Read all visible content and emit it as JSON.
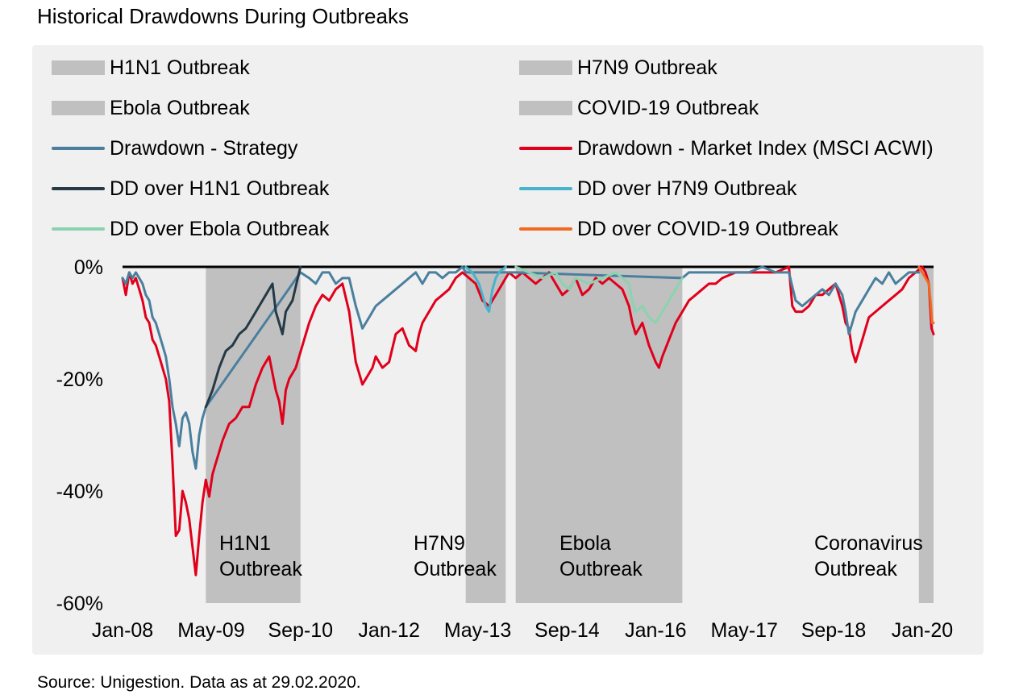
{
  "page": {
    "title": "Historical Drawdowns During Outbreaks",
    "source": "Source: Unigestion. Data as at 29.02.2020."
  },
  "chart_data": {
    "type": "line",
    "title": "Historical Drawdowns During Outbreaks",
    "xlabel": "",
    "ylabel": "",
    "ylim": [
      -60,
      0
    ],
    "yticks": [
      0,
      -20,
      -40,
      -60
    ],
    "ytick_labels": [
      "0%",
      "-20%",
      "-40%",
      "-60%"
    ],
    "xlim": [
      2008.0,
      2020.17
    ],
    "xticks": [
      2008.0,
      2009.33,
      2010.67,
      2012.0,
      2013.33,
      2014.67,
      2016.0,
      2017.33,
      2018.67,
      2020.0
    ],
    "xtick_labels": [
      "Jan-08",
      "May-09",
      "Sep-10",
      "Jan-12",
      "May-13",
      "Sep-14",
      "Jan-16",
      "May-17",
      "Sep-18",
      "Jan-20"
    ],
    "legend": [
      {
        "label": "H1N1 Outbreak",
        "kind": "area",
        "color": "#c0c0c0"
      },
      {
        "label": "H7N9 Outbreak",
        "kind": "area",
        "color": "#c0c0c0"
      },
      {
        "label": "Ebola Outbreak",
        "kind": "area",
        "color": "#c0c0c0"
      },
      {
        "label": "COVID-19 Outbreak",
        "kind": "area",
        "color": "#c0c0c0"
      },
      {
        "label": "Drawdown - Strategy",
        "kind": "line",
        "color": "#4a7f9e"
      },
      {
        "label": "Drawdown - Market Index (MSCI ACWI)",
        "kind": "line",
        "color": "#e0001b"
      },
      {
        "label": "DD over H1N1 Outbreak",
        "kind": "line",
        "color": "#253a46"
      },
      {
        "label": "DD over H7N9 Outbreak",
        "kind": "line",
        "color": "#45b4cc"
      },
      {
        "label": "DD over Ebola Outbreak",
        "kind": "line",
        "color": "#8bd3b0"
      },
      {
        "label": "DD over COVID-19 Outbreak",
        "kind": "line",
        "color": "#f26a21"
      }
    ],
    "shaded_periods": [
      {
        "name": "H1N1 Outbreak",
        "start": 2009.25,
        "end": 2010.67,
        "annotation": [
          "H1N1",
          "Outbreak"
        ]
      },
      {
        "name": "H7N9 Outbreak",
        "start": 2013.15,
        "end": 2013.75,
        "annotation": [
          "H7N9",
          "Outbreak"
        ]
      },
      {
        "name": "Ebola Outbreak",
        "start": 2013.9,
        "end": 2016.4,
        "annotation": [
          "Ebola",
          "Outbreak"
        ]
      },
      {
        "name": "COVID-19 Outbreak",
        "start": 2019.95,
        "end": 2020.17,
        "annotation": [
          "Coronavirus",
          "Outbreak"
        ]
      }
    ],
    "series": [
      {
        "name": "Drawdown - Market Index (MSCI ACWI)",
        "color": "#e0001b",
        "x": [
          2008.0,
          2008.05,
          2008.1,
          2008.15,
          2008.2,
          2008.25,
          2008.3,
          2008.35,
          2008.4,
          2008.45,
          2008.5,
          2008.55,
          2008.6,
          2008.65,
          2008.7,
          2008.75,
          2008.8,
          2008.85,
          2008.9,
          2008.95,
          2009.0,
          2009.05,
          2009.1,
          2009.15,
          2009.2,
          2009.25,
          2009.3,
          2009.35,
          2009.4,
          2009.45,
          2009.5,
          2009.6,
          2009.7,
          2009.8,
          2009.9,
          2010.0,
          2010.1,
          2010.2,
          2010.3,
          2010.35,
          2010.4,
          2010.45,
          2010.5,
          2010.6,
          2010.7,
          2010.8,
          2010.9,
          2011.0,
          2011.1,
          2011.2,
          2011.3,
          2011.4,
          2011.5,
          2011.55,
          2011.6,
          2011.7,
          2011.75,
          2011.8,
          2011.9,
          2012.0,
          2012.1,
          2012.2,
          2012.3,
          2012.4,
          2012.45,
          2012.5,
          2012.6,
          2012.7,
          2012.8,
          2012.9,
          2013.0,
          2013.1,
          2013.2,
          2013.3,
          2013.4,
          2013.5,
          2013.6,
          2013.7,
          2013.8,
          2013.9,
          2014.0,
          2014.1,
          2014.2,
          2014.3,
          2014.4,
          2014.5,
          2014.6,
          2014.7,
          2014.8,
          2014.9,
          2015.0,
          2015.1,
          2015.2,
          2015.3,
          2015.4,
          2015.5,
          2015.6,
          2015.65,
          2015.7,
          2015.8,
          2015.9,
          2016.0,
          2016.05,
          2016.1,
          2016.2,
          2016.3,
          2016.4,
          2016.5,
          2016.6,
          2016.7,
          2016.8,
          2016.9,
          2017.0,
          2017.2,
          2017.4,
          2017.6,
          2017.8,
          2018.0,
          2018.05,
          2018.1,
          2018.2,
          2018.3,
          2018.4,
          2018.5,
          2018.6,
          2018.7,
          2018.8,
          2018.85,
          2018.9,
          2018.95,
          2019.0,
          2019.1,
          2019.2,
          2019.3,
          2019.4,
          2019.5,
          2019.6,
          2019.7,
          2019.8,
          2019.9,
          2020.0,
          2020.05,
          2020.1,
          2020.14,
          2020.17
        ],
        "values": [
          -2,
          -5,
          -1,
          -3,
          -2,
          -4,
          -6,
          -9,
          -10,
          -13,
          -14,
          -16,
          -18,
          -20,
          -24,
          -35,
          -48,
          -47,
          -40,
          -42,
          -45,
          -50,
          -55,
          -48,
          -42,
          -38,
          -41,
          -37,
          -35,
          -33,
          -31,
          -28,
          -27,
          -25,
          -25,
          -21,
          -18,
          -16,
          -22,
          -24,
          -28,
          -22,
          -20,
          -18,
          -14,
          -10,
          -7,
          -5,
          -6,
          -4,
          -3,
          -8,
          -17,
          -19,
          -21,
          -19,
          -18,
          -16,
          -18,
          -17,
          -12,
          -11,
          -14,
          -15,
          -12,
          -10,
          -8,
          -6,
          -5,
          -4,
          -2,
          -1,
          -2,
          -3,
          -6,
          -7,
          -5,
          -3,
          -1,
          -2,
          -1,
          -2,
          -3,
          -2,
          -1,
          -3,
          -5,
          -4,
          -2,
          -5,
          -4,
          -2,
          -3,
          -2,
          -3,
          -4,
          -7,
          -10,
          -12,
          -10,
          -14,
          -17,
          -18,
          -16,
          -13,
          -10,
          -8,
          -6,
          -5,
          -4,
          -3,
          -3,
          -2,
          -1,
          -1,
          -1,
          -1,
          0,
          -7,
          -8,
          -8,
          -7,
          -5,
          -5,
          -4,
          -3,
          -7,
          -10,
          -11,
          -15,
          -17,
          -13,
          -9,
          -8,
          -7,
          -6,
          -5,
          -4,
          -2,
          -1,
          0,
          -1,
          -3,
          -11,
          -12
        ]
      },
      {
        "name": "Drawdown - Strategy",
        "color": "#4a7f9e",
        "x": [
          2008.0,
          2008.05,
          2008.1,
          2008.15,
          2008.2,
          2008.25,
          2008.3,
          2008.35,
          2008.4,
          2008.45,
          2008.5,
          2008.55,
          2008.6,
          2008.65,
          2008.7,
          2008.75,
          2008.8,
          2008.85,
          2008.9,
          2008.95,
          2009.0,
          2009.05,
          2009.1,
          2009.15,
          2009.2,
          2009.25,
          2010.67,
          2010.8,
          2010.9,
          2011.0,
          2011.1,
          2011.2,
          2011.3,
          2011.4,
          2011.5,
          2011.55,
          2011.6,
          2011.7,
          2011.75,
          2011.8,
          2011.9,
          2012.0,
          2012.1,
          2012.2,
          2012.3,
          2012.4,
          2012.5,
          2012.6,
          2012.7,
          2012.8,
          2012.9,
          2013.0,
          2013.1,
          2013.15,
          2013.75,
          2013.8,
          2013.9,
          2016.4,
          2016.5,
          2016.6,
          2016.7,
          2016.8,
          2016.9,
          2017.0,
          2017.2,
          2017.4,
          2017.6,
          2017.8,
          2018.0,
          2018.1,
          2018.2,
          2018.3,
          2018.4,
          2018.5,
          2018.6,
          2018.7,
          2018.8,
          2018.85,
          2018.9,
          2018.95,
          2019.0,
          2019.1,
          2019.2,
          2019.3,
          2019.4,
          2019.5,
          2019.6,
          2019.7,
          2019.8,
          2019.9,
          2019.95
        ],
        "values": [
          -2,
          -3,
          -1,
          -2,
          -1,
          -2,
          -3,
          -5,
          -6,
          -9,
          -10,
          -12,
          -14,
          -16,
          -20,
          -25,
          -28,
          -32,
          -27,
          -26,
          -28,
          -33,
          -36,
          -30,
          -27,
          -25,
          -1,
          -2,
          -3,
          -1,
          -1,
          -3,
          -2,
          -2,
          -7,
          -9,
          -11,
          -9,
          -8,
          -7,
          -6,
          -5,
          -4,
          -3,
          -2,
          -1,
          -3,
          -1,
          -1,
          -2,
          -1,
          -1,
          0,
          -1,
          -1,
          -1,
          -1,
          -2,
          -1,
          -1,
          -1,
          -1,
          -1,
          -1,
          -1,
          -1,
          0,
          -1,
          -1,
          -6,
          -7,
          -6,
          -5,
          -4,
          -5,
          -3,
          -5,
          -8,
          -12,
          -10,
          -8,
          -6,
          -4,
          -2,
          -3,
          -1,
          -3,
          -2,
          -1,
          -1,
          -1
        ]
      },
      {
        "name": "DD over H1N1 Outbreak",
        "color": "#253a46",
        "x": [
          2009.25,
          2009.35,
          2009.45,
          2009.55,
          2009.65,
          2009.75,
          2009.85,
          2009.95,
          2010.05,
          2010.15,
          2010.25,
          2010.3,
          2010.35,
          2010.4,
          2010.45,
          2010.55,
          2010.67
        ],
        "values": [
          -25,
          -22,
          -18,
          -15,
          -14,
          -12,
          -11,
          -9,
          -7,
          -5,
          -3,
          -8,
          -10,
          -12,
          -8,
          -6,
          0
        ]
      },
      {
        "name": "DD over H7N9 Outbreak",
        "color": "#45b4cc",
        "x": [
          2013.15,
          2013.25,
          2013.35,
          2013.4,
          2013.45,
          2013.5,
          2013.55,
          2013.6,
          2013.65,
          2013.75
        ],
        "values": [
          0,
          -1,
          -3,
          -5,
          -7,
          -8,
          -4,
          -2,
          -1,
          0
        ]
      },
      {
        "name": "DD over Ebola Outbreak",
        "color": "#8bd3b0",
        "x": [
          2013.9,
          2014.1,
          2014.3,
          2014.5,
          2014.6,
          2014.7,
          2014.8,
          2015.0,
          2015.2,
          2015.4,
          2015.6,
          2015.65,
          2015.7,
          2015.8,
          2015.9,
          2016.0,
          2016.05,
          2016.1,
          2016.2,
          2016.3,
          2016.4
        ],
        "values": [
          0,
          -1,
          -2,
          -1,
          -3,
          -4,
          -2,
          -3,
          -2,
          -1,
          -3,
          -6,
          -8,
          -7,
          -9,
          -10,
          -9,
          -8,
          -6,
          -4,
          -2
        ]
      },
      {
        "name": "DD over COVID-19 Outbreak",
        "color": "#f26a21",
        "x": [
          2019.95,
          2020.0,
          2020.05,
          2020.1,
          2020.13,
          2020.15,
          2020.17
        ],
        "values": [
          0,
          -1,
          -2,
          -3,
          -7,
          -10,
          -10
        ]
      }
    ],
    "annotations": [
      "H1N1 Outbreak",
      "H7N9 Outbreak",
      "Ebola Outbreak",
      "Coronavirus Outbreak"
    ]
  }
}
